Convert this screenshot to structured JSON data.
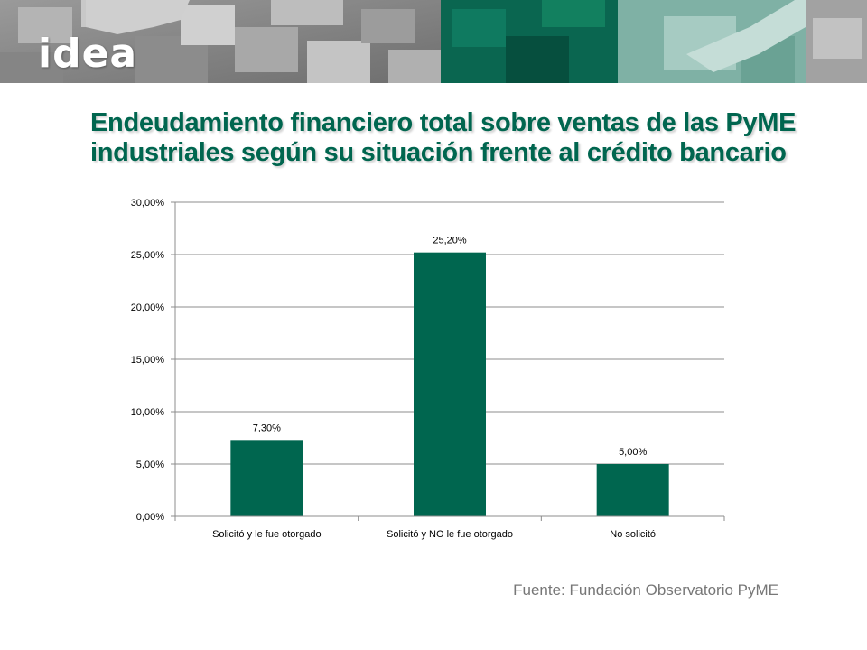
{
  "header": {
    "logo_text": "idea"
  },
  "slide": {
    "title": "Endeudamiento financiero total sobre ventas de las PyME industriales según su situación frente al crédito bancario",
    "source": "Fuente: Fundación Observatorio PyME"
  },
  "colors": {
    "bar": "#00664f",
    "title": "#00664f",
    "banner_green": "#0a6650",
    "banner_teal": "#7fb1a5"
  },
  "chart_data": {
    "type": "bar",
    "title": "",
    "xlabel": "",
    "ylabel": "",
    "categories": [
      "Solicitó y le fue otorgado",
      "Solicitó y NO le fue otorgado",
      "No solicitó"
    ],
    "values": [
      7.3,
      25.2,
      5.0
    ],
    "value_labels": [
      "7,30%",
      "25,20%",
      "5,00%"
    ],
    "ylim": [
      0,
      30
    ],
    "yticks": [
      0,
      5,
      10,
      15,
      20,
      25,
      30
    ],
    "ytick_labels": [
      "0,00%",
      "5,00%",
      "10,00%",
      "15,00%",
      "20,00%",
      "25,00%",
      "30,00%"
    ],
    "grid": true,
    "legend": "none"
  }
}
